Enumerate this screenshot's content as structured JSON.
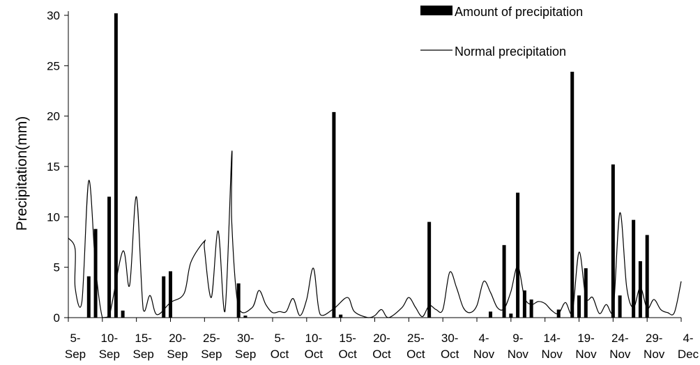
{
  "chart_data": {
    "type": "bar",
    "title": "",
    "xlabel": "",
    "ylabel": "Precipitation(mm)",
    "ylim": [
      0,
      30
    ],
    "yticks": [
      0,
      5,
      10,
      15,
      20,
      25,
      30
    ],
    "x_start_day": 0,
    "x_end_day": 90,
    "x_tick_labels": [
      [
        "5-",
        "Sep"
      ],
      [
        "10-",
        "Sep"
      ],
      [
        "15-",
        "Sep"
      ],
      [
        "20-",
        "Sep"
      ],
      [
        "25-",
        "Sep"
      ],
      [
        "30-",
        "Sep"
      ],
      [
        "5-",
        "Oct"
      ],
      [
        "10-",
        "Oct"
      ],
      [
        "15-",
        "Oct"
      ],
      [
        "20-",
        "Oct"
      ],
      [
        "25-",
        "Oct"
      ],
      [
        "30-",
        "Oct"
      ],
      [
        "4-",
        "Nov"
      ],
      [
        "9-",
        "Nov"
      ],
      [
        "14-",
        "Nov"
      ],
      [
        "19-",
        "Nov"
      ],
      [
        "24-",
        "Nov"
      ],
      [
        "29-",
        "Nov"
      ],
      [
        "4-",
        "Dec"
      ]
    ],
    "legend": {
      "placement": "top-right",
      "bar_label": "Amount of precipitation",
      "line_label": "Normal precipitation"
    },
    "bar_color": "#000000",
    "line_color": "#000000",
    "series": [
      {
        "name": "Amount of precipitation",
        "type": "bar",
        "points": [
          [
            "8-Sep",
            4.1
          ],
          [
            "9-Sep",
            8.8
          ],
          [
            "11-Sep",
            12.0
          ],
          [
            "12-Sep",
            30.2
          ],
          [
            "13-Sep",
            0.7
          ],
          [
            "19-Sep",
            4.1
          ],
          [
            "20-Sep",
            4.6
          ],
          [
            "30-Sep",
            3.4
          ],
          [
            "1-Oct",
            0.2
          ],
          [
            "14-Oct",
            20.4
          ],
          [
            "15-Oct",
            0.3
          ],
          [
            "28-Oct",
            9.5
          ],
          [
            "6-Nov",
            0.6
          ],
          [
            "8-Nov",
            7.2
          ],
          [
            "9-Nov",
            0.4
          ],
          [
            "10-Nov",
            12.4
          ],
          [
            "11-Nov",
            2.7
          ],
          [
            "12-Nov",
            1.8
          ],
          [
            "16-Nov",
            0.8
          ],
          [
            "18-Nov",
            24.4
          ],
          [
            "19-Nov",
            2.2
          ],
          [
            "20-Nov",
            4.9
          ],
          [
            "24-Nov",
            15.2
          ],
          [
            "25-Nov",
            2.2
          ],
          [
            "27-Nov",
            9.7
          ],
          [
            "28-Nov",
            5.6
          ],
          [
            "29-Nov",
            8.2
          ]
        ]
      },
      {
        "name": "Normal precipitation",
        "type": "line",
        "points": [
          [
            "5-Sep",
            7.9
          ],
          [
            "6-Sep",
            6.8
          ],
          [
            "6-Sep",
            3.0
          ],
          [
            "7-Sep",
            1.6
          ],
          [
            "8-Sep",
            13.6
          ],
          [
            "9-Sep",
            5.0
          ],
          [
            "10-Sep",
            0.0
          ],
          [
            "11-Sep",
            0.1
          ],
          [
            "13-Sep",
            6.6
          ],
          [
            "14-Sep",
            3.2
          ],
          [
            "15-Sep",
            12.0
          ],
          [
            "16-Sep",
            0.8
          ],
          [
            "17-Sep",
            2.2
          ],
          [
            "18-Sep",
            0.3
          ],
          [
            "20-Sep",
            1.5
          ],
          [
            "22-Sep",
            2.4
          ],
          [
            "23-Sep",
            5.5
          ],
          [
            "25-Sep",
            7.6
          ],
          [
            "25-Sep",
            6.8
          ],
          [
            "26-Sep",
            2.0
          ],
          [
            "27-Sep",
            8.6
          ],
          [
            "28-Sep",
            0.6
          ],
          [
            "29-Sep",
            16.3
          ],
          [
            "29-Sep",
            9.5
          ],
          [
            "30-Sep",
            1.0
          ],
          [
            "2-Oct",
            1.0
          ],
          [
            "3-Oct",
            2.7
          ],
          [
            "4-Oct",
            1.3
          ],
          [
            "5-Oct",
            0.5
          ],
          [
            "6-Oct",
            0.6
          ],
          [
            "7-Oct",
            0.6
          ],
          [
            "8-Oct",
            1.9
          ],
          [
            "9-Oct",
            0.2
          ],
          [
            "10-Oct",
            1.8
          ],
          [
            "11-Oct",
            4.9
          ],
          [
            "12-Oct",
            0.3
          ],
          [
            "14-Oct",
            0.9
          ],
          [
            "16-Oct",
            2.0
          ],
          [
            "17-Oct",
            0.6
          ],
          [
            "19-Oct",
            0.0
          ],
          [
            "20-Oct",
            0.2
          ],
          [
            "21-Oct",
            0.8
          ],
          [
            "22-Oct",
            0.0
          ],
          [
            "24-Oct",
            1.0
          ],
          [
            "25-Oct",
            2.0
          ],
          [
            "26-Oct",
            1.0
          ],
          [
            "27-Oct",
            0.1
          ],
          [
            "28-Oct",
            1.2
          ],
          [
            "29-Oct",
            0.8
          ],
          [
            "30-Oct",
            0.8
          ],
          [
            "31-Oct",
            4.5
          ],
          [
            "1-Nov",
            3.0
          ],
          [
            "2-Nov",
            1.0
          ],
          [
            "3-Nov",
            0.5
          ],
          [
            "4-Nov",
            1.2
          ],
          [
            "5-Nov",
            3.6
          ],
          [
            "6-Nov",
            2.5
          ],
          [
            "7-Nov",
            1.0
          ],
          [
            "8-Nov",
            0.9
          ],
          [
            "9-Nov",
            2.6
          ],
          [
            "10-Nov",
            5.1
          ],
          [
            "11-Nov",
            2.0
          ],
          [
            "12-Nov",
            1.3
          ],
          [
            "13-Nov",
            1.6
          ],
          [
            "14-Nov",
            1.4
          ],
          [
            "15-Nov",
            0.7
          ],
          [
            "16-Nov",
            0.4
          ],
          [
            "17-Nov",
            1.5
          ],
          [
            "18-Nov",
            0.4
          ],
          [
            "19-Nov",
            6.5
          ],
          [
            "20-Nov",
            2.0
          ],
          [
            "21-Nov",
            2.0
          ],
          [
            "22-Nov",
            0.4
          ],
          [
            "23-Nov",
            1.3
          ],
          [
            "24-Nov",
            0.5
          ],
          [
            "25-Nov",
            10.4
          ],
          [
            "26-Nov",
            3.0
          ],
          [
            "27-Nov",
            1.0
          ],
          [
            "28-Nov",
            3.0
          ],
          [
            "29-Nov",
            0.9
          ],
          [
            "30-Nov",
            1.8
          ],
          [
            "1-Dec",
            0.8
          ],
          [
            "2-Dec",
            0.5
          ],
          [
            "3-Dec",
            0.5
          ],
          [
            "4-Dec",
            3.6
          ]
        ]
      }
    ]
  }
}
